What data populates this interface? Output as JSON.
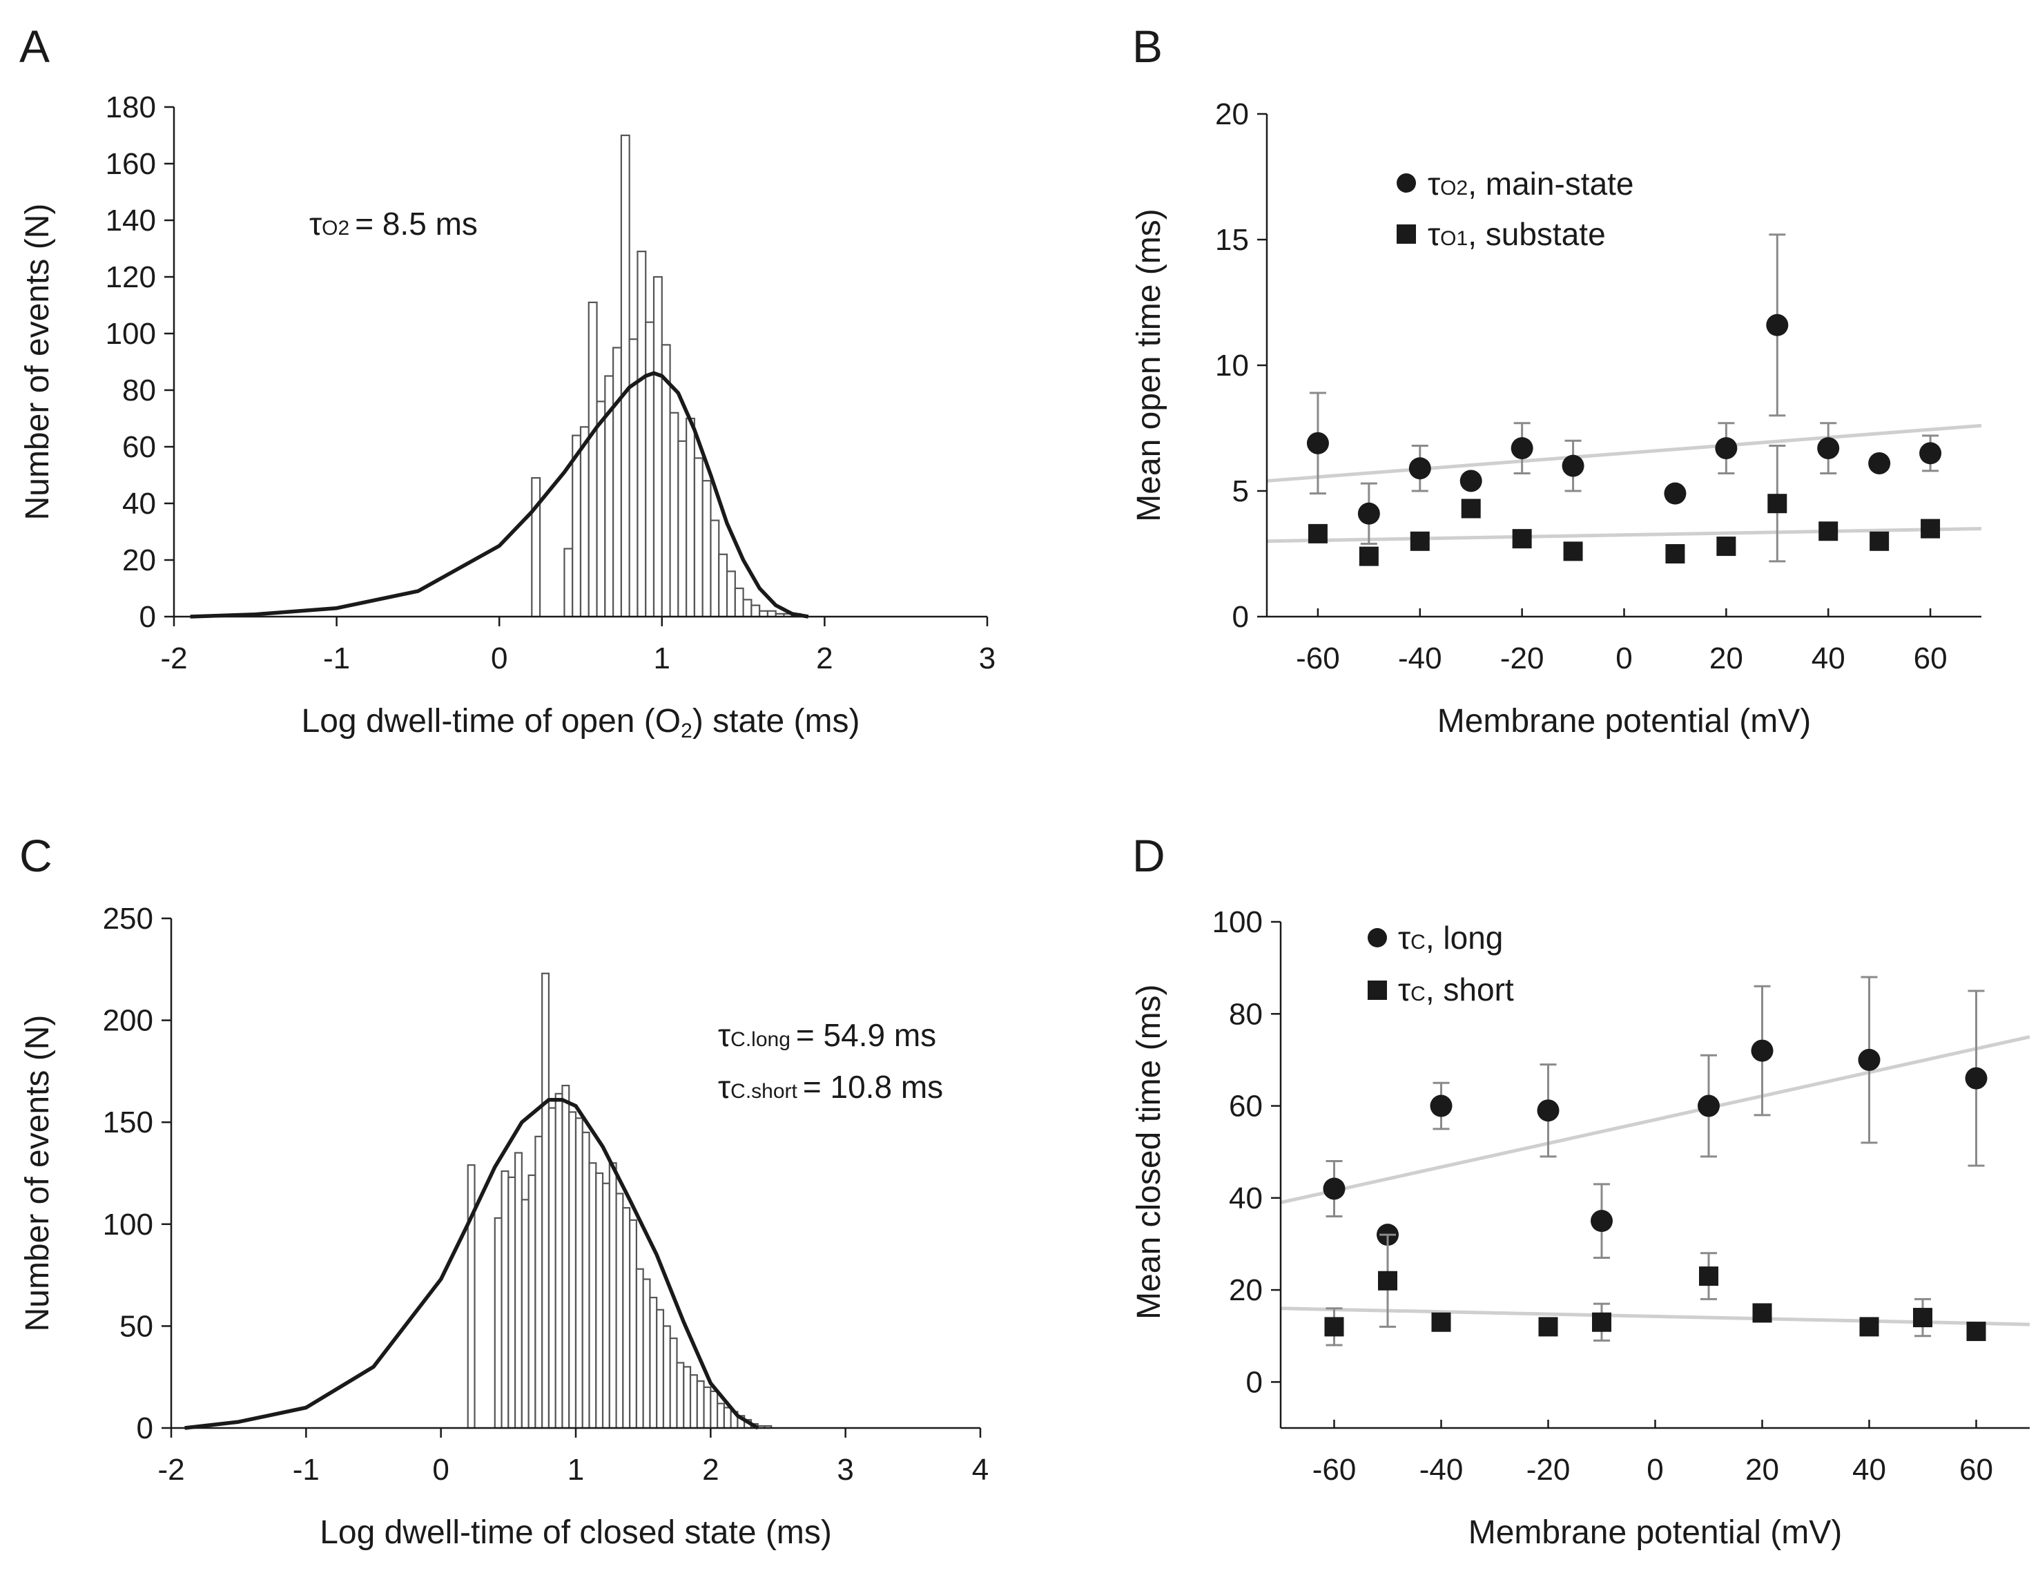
{
  "panels": {
    "A": "A",
    "B": "B",
    "C": "C",
    "D": "D"
  },
  "annotations": {
    "A": {
      "tau_sym": "τ",
      "tau_sub": "O2",
      "tau_val": "= 8.5 ms"
    },
    "C": {
      "long_sym": "τ",
      "long_sub": "C.long",
      "long_val": "= 54.9 ms",
      "short_sym": "τ",
      "short_sub": "C.short",
      "short_val": "= 10.8 ms"
    }
  },
  "legends": {
    "B": [
      {
        "sym": "τ",
        "sub": "O2",
        "text": ", main-state"
      },
      {
        "sym": "τ",
        "sub": "O1",
        "text": ", substate"
      }
    ],
    "D": [
      {
        "sym": "τ",
        "sub": "C",
        "text": ", long"
      },
      {
        "sym": "τ",
        "sub": "C",
        "text": ", short"
      }
    ]
  },
  "chart_data": [
    {
      "panel": "A",
      "type": "bar",
      "xlabel_parts": [
        "Log dwell-time of open (O",
        "2",
        ") state (ms)"
      ],
      "ylabel": "Number of events (N)",
      "xlim": [
        -2,
        3
      ],
      "ylim": [
        0,
        180
      ],
      "xticks": [
        -2,
        -1,
        0,
        1,
        2,
        3
      ],
      "yticks": [
        0,
        20,
        40,
        60,
        80,
        100,
        120,
        140,
        160,
        180
      ],
      "bin_start": 0.2,
      "bin_width": 0.05,
      "values": [
        49,
        0,
        0,
        0,
        24,
        64,
        67,
        111,
        76,
        85,
        95,
        170,
        98,
        129,
        104,
        120,
        96,
        72,
        62,
        70,
        56,
        48,
        34,
        22,
        16,
        10,
        6,
        4,
        2,
        2,
        1,
        1,
        1,
        0,
        0,
        0
      ],
      "fit_curve": {
        "x": [
          -1.9,
          -1.5,
          -1.0,
          -0.5,
          0.0,
          0.2,
          0.4,
          0.6,
          0.8,
          0.9,
          0.95,
          1.0,
          1.1,
          1.2,
          1.3,
          1.4,
          1.5,
          1.6,
          1.7,
          1.8,
          1.9
        ],
        "y": [
          0,
          0.8,
          3,
          9,
          25,
          37,
          51,
          67,
          81,
          85,
          86,
          85,
          79,
          66,
          50,
          33,
          20,
          10,
          4,
          1,
          0
        ]
      }
    },
    {
      "panel": "B",
      "type": "scatter",
      "xlabel": "Membrane potential (mV)",
      "ylabel": "Mean open time (ms)",
      "xlim": [
        -70,
        70
      ],
      "ylim": [
        0,
        20
      ],
      "xticks": [
        -60,
        -40,
        -20,
        0,
        20,
        40,
        60
      ],
      "yticks": [
        0,
        5,
        10,
        15,
        20
      ],
      "series": [
        {
          "marker": "circle",
          "x": [
            -60,
            -50,
            -40,
            -30,
            -20,
            -10,
            10,
            20,
            30,
            40,
            50,
            60
          ],
          "y": [
            6.9,
            4.1,
            5.9,
            5.4,
            6.7,
            6.0,
            4.9,
            6.7,
            11.6,
            6.7,
            6.1,
            6.5
          ],
          "err": [
            2.0,
            1.2,
            0.9,
            0,
            1.0,
            1.0,
            0,
            1.0,
            3.6,
            1.0,
            0,
            0.7
          ],
          "fit": [
            [
              -70,
              5.4
            ],
            [
              70,
              7.6
            ]
          ]
        },
        {
          "marker": "square",
          "x": [
            -60,
            -50,
            -40,
            -30,
            -20,
            -10,
            10,
            20,
            30,
            40,
            50,
            60
          ],
          "y": [
            3.3,
            2.4,
            3.0,
            4.3,
            3.1,
            2.6,
            2.5,
            2.8,
            4.5,
            3.4,
            3.0,
            3.5
          ],
          "err": [
            0.3,
            0,
            0,
            0,
            0,
            0,
            0,
            0,
            2.3,
            0,
            0,
            0
          ],
          "fit": [
            [
              -70,
              3.0
            ],
            [
              70,
              3.5
            ]
          ]
        }
      ]
    },
    {
      "panel": "C",
      "type": "bar",
      "xlabel": "Log dwell-time of closed state (ms)",
      "ylabel": "Number of events (N)",
      "xlim": [
        -2,
        4
      ],
      "ylim": [
        0,
        250
      ],
      "xticks": [
        -2,
        -1,
        0,
        1,
        2,
        3,
        4
      ],
      "yticks": [
        0,
        50,
        100,
        150,
        200,
        250
      ],
      "bin_start": 0.2,
      "bin_width": 0.05,
      "values": [
        129,
        0,
        0,
        0,
        103,
        126,
        123,
        135,
        112,
        124,
        143,
        223,
        157,
        164,
        168,
        155,
        152,
        145,
        130,
        125,
        120,
        130,
        115,
        108,
        102,
        78,
        73,
        64,
        58,
        50,
        44,
        32,
        30,
        26,
        23,
        20,
        18,
        12,
        10,
        8,
        6,
        4,
        2,
        1,
        1,
        0,
        0,
        0
      ],
      "fit_curve": {
        "x": [
          -1.9,
          -1.5,
          -1.0,
          -0.5,
          0.0,
          0.2,
          0.4,
          0.6,
          0.8,
          0.9,
          1.0,
          1.2,
          1.4,
          1.6,
          1.8,
          2.0,
          2.2,
          2.35
        ],
        "y": [
          0,
          3,
          10,
          30,
          73,
          100,
          128,
          150,
          161,
          161,
          158,
          138,
          112,
          85,
          52,
          22,
          6,
          0
        ]
      }
    },
    {
      "panel": "D",
      "type": "scatter",
      "xlabel": "Membrane potential (mV)",
      "ylabel": "Mean closed time (ms)",
      "xlim": [
        -70,
        70
      ],
      "ylim": [
        -10,
        100
      ],
      "xticks": [
        -60,
        -40,
        -20,
        0,
        20,
        40,
        60
      ],
      "yticks": [
        0,
        20,
        40,
        60,
        80,
        100
      ],
      "series": [
        {
          "marker": "circle",
          "x": [
            -60,
            -50,
            -40,
            -20,
            -10,
            10,
            20,
            40,
            60
          ],
          "y": [
            42,
            32,
            60,
            59,
            35,
            60,
            72,
            70,
            66
          ],
          "err": [
            6,
            0,
            5,
            10,
            8,
            11,
            14,
            18,
            19
          ],
          "fit": [
            [
              -70,
              39
            ],
            [
              70,
              75
            ]
          ]
        },
        {
          "marker": "square",
          "x": [
            -60,
            -50,
            -40,
            -20,
            -10,
            10,
            20,
            40,
            50,
            60
          ],
          "y": [
            12,
            22,
            13,
            12,
            13,
            23,
            15,
            12,
            14,
            11
          ],
          "err": [
            4,
            10,
            0,
            0,
            4,
            5,
            0,
            0,
            4,
            0
          ],
          "fit": [
            [
              -70,
              16
            ],
            [
              70,
              12.5
            ]
          ]
        }
      ]
    }
  ]
}
